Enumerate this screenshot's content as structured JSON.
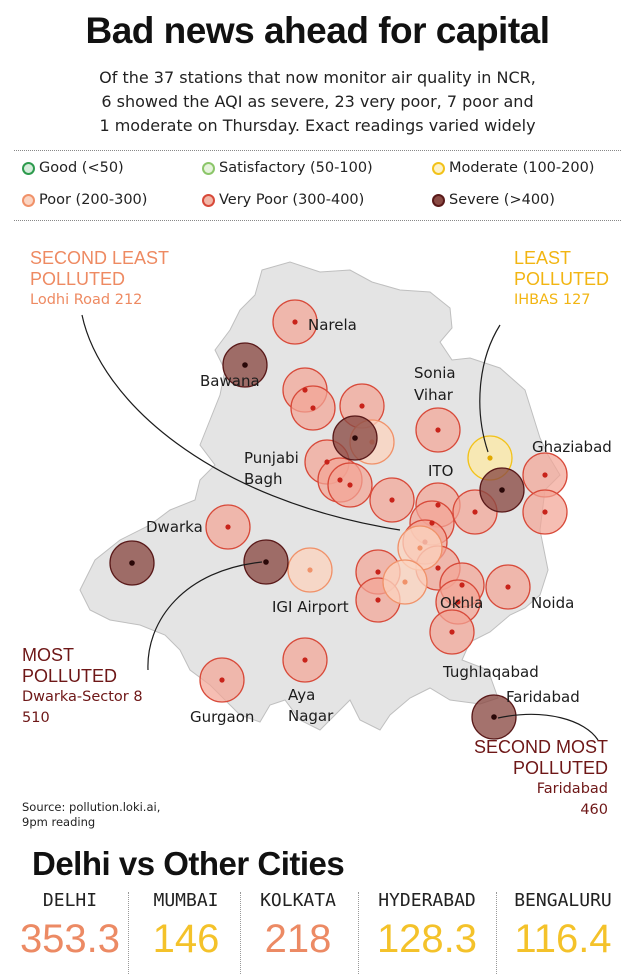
{
  "title": "Bad news ahead for capital",
  "subtitle": [
    "Of the 37 stations that now monitor air quality in NCR,",
    "6 showed the AQI as severe, 23 very poor, 7 poor and",
    "1 moderate on Thursday. Exact readings varied widely"
  ],
  "legend": [
    {
      "label": "Good (<50)",
      "color": "#2e9b4e"
    },
    {
      "label": "Satisfactory (50-100)",
      "color": "#8cc66a"
    },
    {
      "label": "Moderate (100-200)",
      "color": "#f2c21a"
    },
    {
      "label": "Poor (200-300)",
      "color": "#f0926a"
    },
    {
      "label": "Very Poor (300-400)",
      "color": "#d84a3a"
    },
    {
      "label": "Severe (>400)",
      "color": "#6a1e1e"
    }
  ],
  "colors": {
    "poor": "#f0926a",
    "very_poor": "#d84a3a",
    "severe": "#6a1e1e",
    "moderate": "#f2c21a",
    "map": "#e4e4e4"
  },
  "map": {
    "place_labels": [
      "Narela",
      "Bawana",
      "Sonia",
      "Vihar",
      "Punjabi",
      "Bagh",
      "ITO",
      "Ghaziabad",
      "Dwarka",
      "IGI Airport",
      "Okhla",
      "Noida",
      "Tughlaqabad",
      "Aya",
      "Nagar",
      "Gurgaon",
      "Faridabad"
    ]
  },
  "callouts": {
    "second_least": {
      "line1": "SECOND LEAST",
      "line2": "POLLUTED",
      "detail": "Lodhi Road 212"
    },
    "least": {
      "line1": "LEAST",
      "line2": "POLLUTED",
      "detail": "IHBAS 127"
    },
    "most": {
      "line1": "MOST",
      "line2": "POLLUTED",
      "detail1": "Dwarka-Sector 8",
      "detail2": "510"
    },
    "second_most": {
      "line1": "SECOND MOST",
      "line2": "POLLUTED",
      "detail1": "Faridabad",
      "detail2": "460"
    }
  },
  "source": [
    "Source: pollution.loki.ai,",
    "9pm reading"
  ],
  "comparison": {
    "title": "Delhi vs Other Cities",
    "cities": [
      {
        "name": "DELHI",
        "value": "353.3",
        "color": "#ec8a64"
      },
      {
        "name": "MUMBAI",
        "value": "146",
        "color": "#f4c22a"
      },
      {
        "name": "KOLKATA",
        "value": "218",
        "color": "#ec8a64"
      },
      {
        "name": "HYDERABAD",
        "value": "128.3",
        "color": "#f4c22a"
      },
      {
        "name": "BENGALURU",
        "value": "116.4",
        "color": "#f4c22a"
      }
    ]
  }
}
